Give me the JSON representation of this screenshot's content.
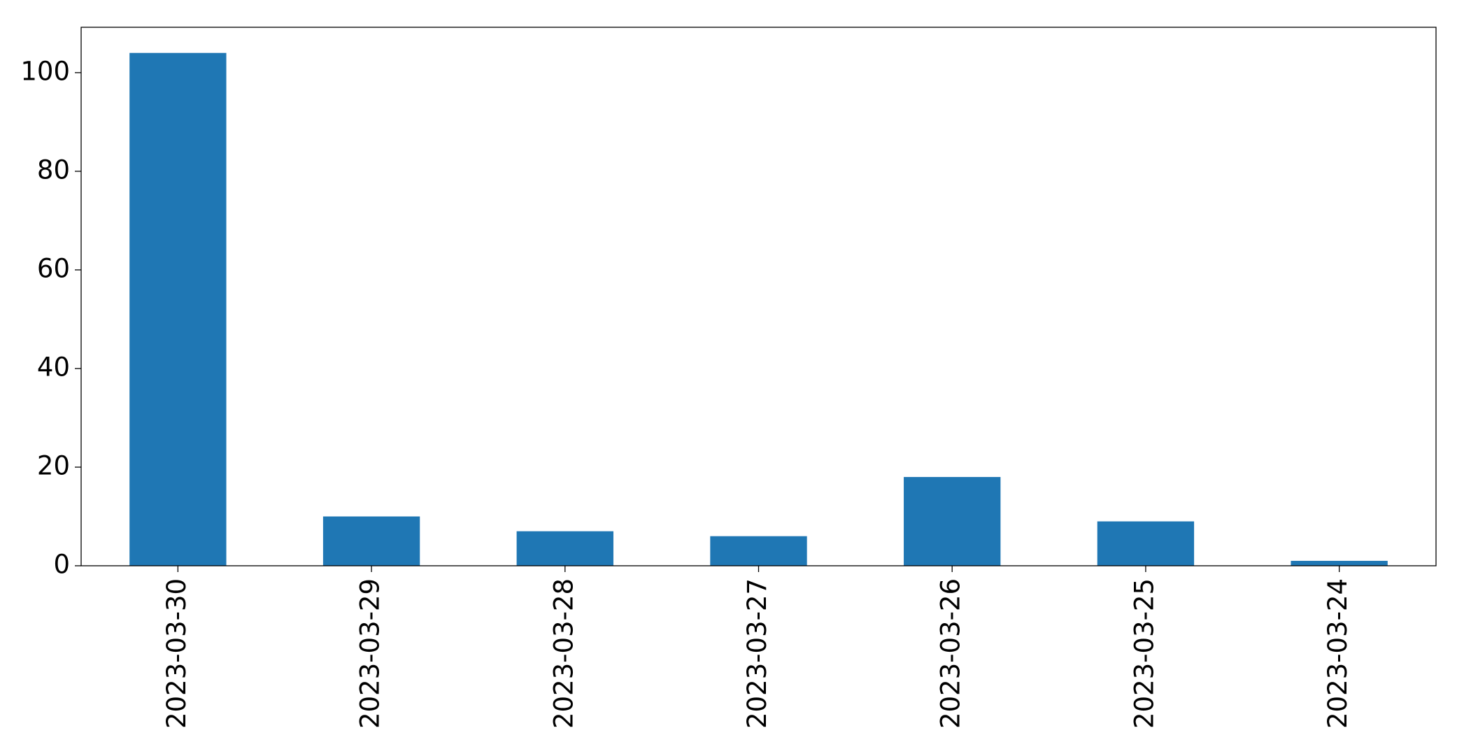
{
  "chart_data": {
    "type": "bar",
    "categories": [
      "2023-03-30",
      "2023-03-29",
      "2023-03-28",
      "2023-03-27",
      "2023-03-26",
      "2023-03-25",
      "2023-03-24"
    ],
    "values": [
      104,
      10,
      7,
      6,
      18,
      9,
      1
    ],
    "color": "#1f77b4",
    "ylim": [
      0,
      109.2
    ],
    "yticks": [
      0,
      20,
      40,
      60,
      80,
      100
    ],
    "grid": false
  }
}
